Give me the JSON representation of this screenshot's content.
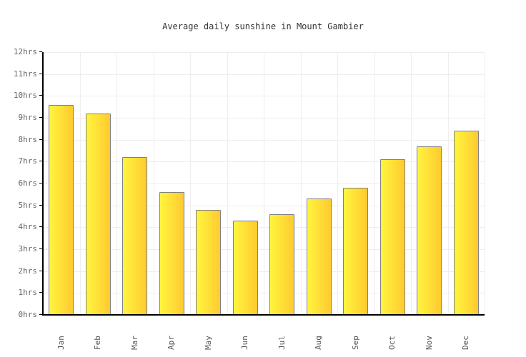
{
  "chart_data": {
    "type": "bar",
    "title": "Average daily sunshine in Mount Gambier",
    "categories": [
      "Jan",
      "Feb",
      "Mar",
      "Apr",
      "May",
      "Jun",
      "Jul",
      "Aug",
      "Sep",
      "Oct",
      "Nov",
      "Dec"
    ],
    "values": [
      9.6,
      9.2,
      7.2,
      5.6,
      4.8,
      4.3,
      4.6,
      5.3,
      5.8,
      7.1,
      7.7,
      8.4
    ],
    "unit_suffix": "hrs",
    "xlabel": "",
    "ylabel": "",
    "ylim": [
      0,
      12
    ],
    "ytick_step": 1,
    "ytick_labels": [
      "0hrs",
      "1hrs",
      "2hrs",
      "3hrs",
      "4hrs",
      "5hrs",
      "6hrs",
      "7hrs",
      "8hrs",
      "9hrs",
      "10hrs",
      "11hrs",
      "12hrs"
    ],
    "grid": true,
    "legend_position": "none",
    "colors": {
      "bar_gradient_left": "#FFF53E",
      "bar_gradient_right": "#FFCA30",
      "bar_border": "#818181",
      "gridline": "#EEEEEE",
      "axis": "#000000",
      "ytick_label": "#666666",
      "xtick_label": "#555555",
      "title": "#333333",
      "background": "#FFFFFF"
    }
  }
}
